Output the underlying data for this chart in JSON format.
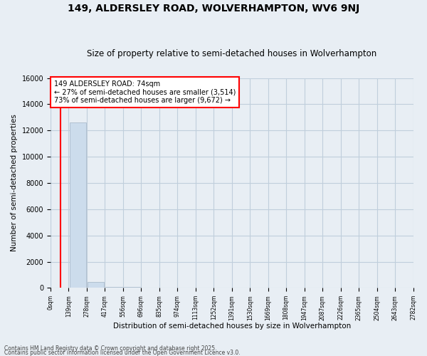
{
  "title": "149, ALDERSLEY ROAD, WOLVERHAMPTON, WV6 9NJ",
  "subtitle": "Size of property relative to semi-detached houses in Wolverhampton",
  "xlabel": "Distribution of semi-detached houses by size in Wolverhampton",
  "ylabel": "Number of semi-detached properties",
  "annotation_title": "149 ALDERSLEY ROAD: 74sqm",
  "annotation_line1": "← 27% of semi-detached houses are smaller (3,514)",
  "annotation_line2": "73% of semi-detached houses are larger (9,672) →",
  "footnote1": "Contains HM Land Registry data © Crown copyright and database right 2025.",
  "footnote2": "Contains public sector information licensed under the Open Government Licence v3.0.",
  "property_size": 74,
  "bin_edges": [
    0,
    139,
    278,
    417,
    556,
    696,
    835,
    974,
    1113,
    1252,
    1391,
    1530,
    1669,
    1808,
    1947,
    2087,
    2226,
    2365,
    2504,
    2643,
    2782
  ],
  "bin_labels": [
    "0sqm",
    "139sqm",
    "278sqm",
    "417sqm",
    "556sqm",
    "696sqm",
    "835sqm",
    "974sqm",
    "1113sqm",
    "1252sqm",
    "1391sqm",
    "1530sqm",
    "1669sqm",
    "1808sqm",
    "1947sqm",
    "2087sqm",
    "2226sqm",
    "2365sqm",
    "2504sqm",
    "2643sqm",
    "2782sqm"
  ],
  "counts": [
    30,
    12600,
    450,
    100,
    50,
    30,
    20,
    15,
    12,
    10,
    8,
    7,
    6,
    5,
    4,
    4,
    3,
    3,
    2,
    2
  ],
  "bar_color": "#ccdcec",
  "bar_edge_color": "#aabbcc",
  "highlight_color": "red",
  "background_color": "#e8eef4",
  "grid_color": "#c0cedc",
  "annotation_box_color": "white",
  "annotation_box_edge": "red",
  "ylim": [
    0,
    16000
  ],
  "yticks": [
    0,
    2000,
    4000,
    6000,
    8000,
    10000,
    12000,
    14000,
    16000
  ],
  "title_fontsize": 10,
  "subtitle_fontsize": 8.5
}
